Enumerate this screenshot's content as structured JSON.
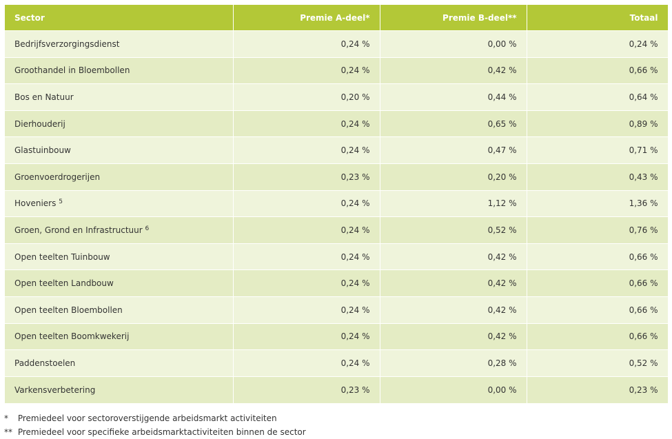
{
  "table": {
    "header": [
      "Sector",
      "Premie A-deel*",
      "Premie B-deel**",
      "Totaal"
    ],
    "rows": [
      [
        "Bedrijfsverzorgingsdienst",
        "0,24 %",
        "0,00 %",
        "0,24 %"
      ],
      [
        "Groothandel in Bloembollen",
        "0,24 %",
        "0,42 %",
        "0,66 %"
      ],
      [
        "Bos en Natuur",
        "0,20 %",
        "0,44 %",
        "0,64 %"
      ],
      [
        "Dierhouderij",
        "0,24 %",
        "0,65 %",
        "0,89 %"
      ],
      [
        "Glastuinbouw",
        "0,24 %",
        "0,47 %",
        "0,71 %"
      ],
      [
        "Groenvoerdrogerijen",
        "0,23 %",
        "0,20 %",
        "0,43 %"
      ],
      [
        {
          "text": "Hoveniers",
          "sup": "5"
        },
        "0,24 %",
        "1,12 %",
        "1,36 %"
      ],
      [
        {
          "text": "Groen, Grond en Infrastructuur",
          "sup": "6"
        },
        "0,24 %",
        "0,52 %",
        "0,76 %"
      ],
      [
        "Open teelten Tuinbouw",
        "0,24 %",
        "0,42 %",
        "0,66 %"
      ],
      [
        "Open teelten Landbouw",
        "0,24 %",
        "0,42 %",
        "0,66 %"
      ],
      [
        "Open teelten Bloembollen",
        "0,24 %",
        "0,42 %",
        "0,66 %"
      ],
      [
        "Open teelten Boomkwekerij",
        "0,24 %",
        "0,42 %",
        "0,66 %"
      ],
      [
        "Paddenstoelen",
        "0,24 %",
        "0,28 %",
        "0,52 %"
      ],
      [
        "Varkensverbetering",
        "0,23 %",
        "0,00 %",
        "0,23 %"
      ]
    ]
  },
  "footnotes": [
    {
      "marker": "*",
      "text": "Premiedeel voor sectoroverstijgende arbeidsmarkt activiteiten"
    },
    {
      "marker": "**",
      "text": "Premiedeel voor specifieke arbeidsmarktactiviteiten binnen de sector"
    }
  ]
}
